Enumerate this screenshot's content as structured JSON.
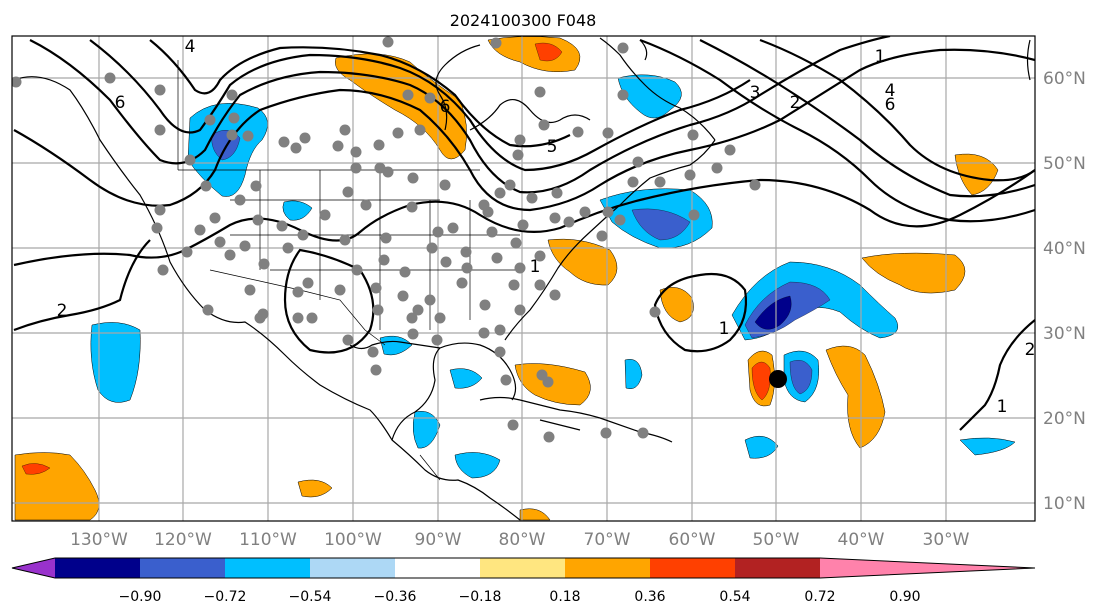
{
  "title": "2024100300 F048",
  "longitude_labels": [
    "130°W",
    "120°W",
    "110°W",
    "100°W",
    "90°W",
    "80°W",
    "70°W",
    "60°W",
    "50°W",
    "40°W",
    "30°W"
  ],
  "latitude_labels": [
    "60°N",
    "50°N",
    "40°N",
    "30°N",
    "20°N",
    "10°N"
  ],
  "colorbar": {
    "tick_labels": [
      "−0.90",
      "−0.72",
      "−0.54",
      "−0.36",
      "−0.18",
      "0.18",
      "0.36",
      "0.54",
      "0.72",
      "0.90"
    ],
    "colors": [
      "#9932cc",
      "#00008b",
      "#3a5fcd",
      "#00bfff",
      "#add8f5",
      "#ffffff",
      "#ffe680",
      "#ffa500",
      "#ff4000",
      "#b22222",
      "#ff82ab"
    ]
  },
  "map": {
    "projection": "Mercator",
    "extent": {
      "lon": [
        -140,
        -19
      ],
      "lat": [
        8,
        65
      ]
    },
    "grid_lon_step": 10,
    "grid_lat_step": 10,
    "contour_labels": [
      "1",
      "2",
      "3",
      "4",
      "5",
      "6"
    ],
    "storm_marker": {
      "lon": -50.5,
      "lat": 24.8,
      "color": "#000000"
    },
    "station_marker_color": "#808080"
  }
}
